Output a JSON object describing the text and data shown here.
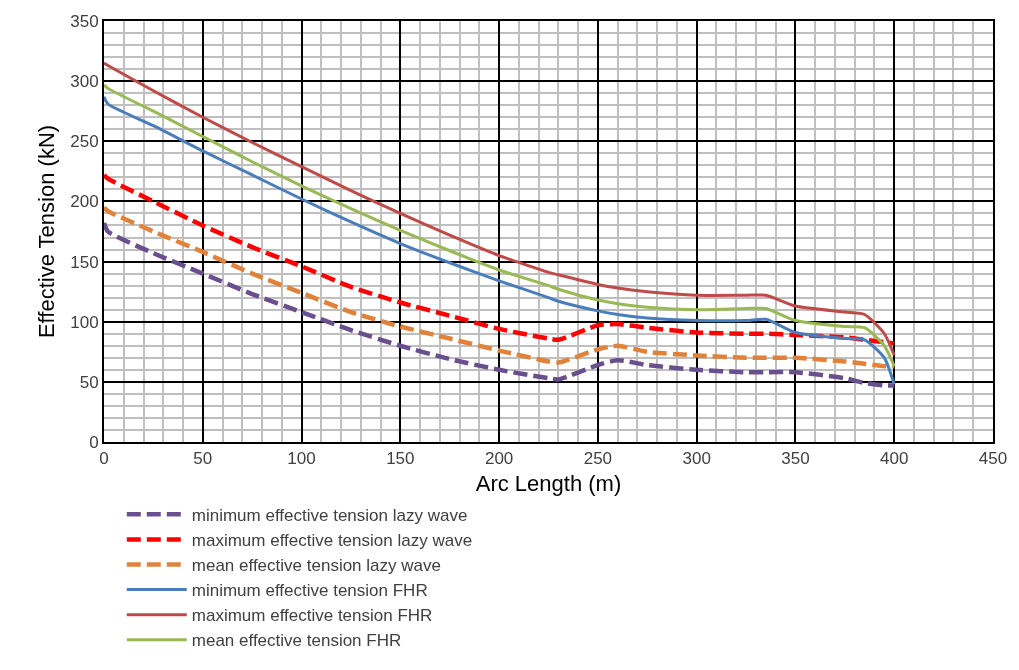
{
  "chart_data": {
    "type": "line",
    "xlabel": "Arc Length (m)",
    "ylabel": "Effective Tension (kN)",
    "x": [
      0,
      2,
      25,
      50,
      75,
      100,
      125,
      150,
      175,
      200,
      225,
      230,
      250,
      260,
      275,
      300,
      325,
      335,
      350,
      375,
      385,
      395,
      400
    ],
    "xlim": [
      0,
      450
    ],
    "xticks": [
      0,
      50,
      100,
      150,
      200,
      250,
      300,
      350,
      400,
      450
    ],
    "ylim": [
      0,
      350
    ],
    "yticks": [
      0,
      50,
      100,
      150,
      200,
      250,
      300,
      350
    ],
    "grid": true,
    "legend": "bottom",
    "marker": "none",
    "series": [
      {
        "name": "minimum effective tension lazy wave",
        "color": "#6a4f8f",
        "line_style": "dashed",
        "values": [
          182,
          175,
          157,
          140,
          123,
          108,
          93,
          80,
          69,
          60,
          53,
          52,
          64,
          68,
          64,
          60,
          58,
          58,
          58,
          53,
          49,
          47,
          47
        ]
      },
      {
        "name": "maximum effective tension lazy wave",
        "color": "#ff0000",
        "line_style": "dashed",
        "values": [
          222,
          219,
          200,
          180,
          162,
          146,
          129,
          116,
          105,
          94,
          86,
          85,
          97,
          98,
          95,
          91,
          90,
          90,
          89,
          87,
          85,
          83,
          82
        ]
      },
      {
        "name": "mean effective tension lazy wave",
        "color": "#e0823a",
        "line_style": "dashed",
        "values": [
          195,
          192,
          175,
          158,
          140,
          124,
          108,
          96,
          86,
          76,
          67,
          66,
          77,
          80,
          75,
          72,
          70,
          70,
          70,
          67,
          65,
          63,
          63
        ]
      },
      {
        "name": "minimum effective tension FHR",
        "color": "#4a7ebb",
        "line_style": "solid",
        "values": [
          287,
          281,
          263,
          242,
          222,
          202,
          183,
          165,
          149,
          134,
          120,
          117,
          109,
          106,
          103,
          101,
          101,
          102,
          91,
          86,
          85,
          70,
          48
        ]
      },
      {
        "name": "maximum effective tension FHR",
        "color": "#be4b48",
        "line_style": "solid",
        "values": [
          315,
          313,
          292,
          270,
          249,
          229,
          209,
          190,
          172,
          155,
          141,
          139,
          131,
          128,
          125,
          122,
          122,
          122,
          113,
          108,
          106,
          90,
          72
        ]
      },
      {
        "name": "mean effective tension FHR",
        "color": "#98b954",
        "line_style": "solid",
        "values": [
          297,
          294,
          275,
          254,
          233,
          213,
          194,
          176,
          159,
          143,
          130,
          127,
          118,
          115,
          112,
          110,
          111,
          111,
          101,
          96,
          95,
          80,
          63
        ]
      }
    ]
  }
}
